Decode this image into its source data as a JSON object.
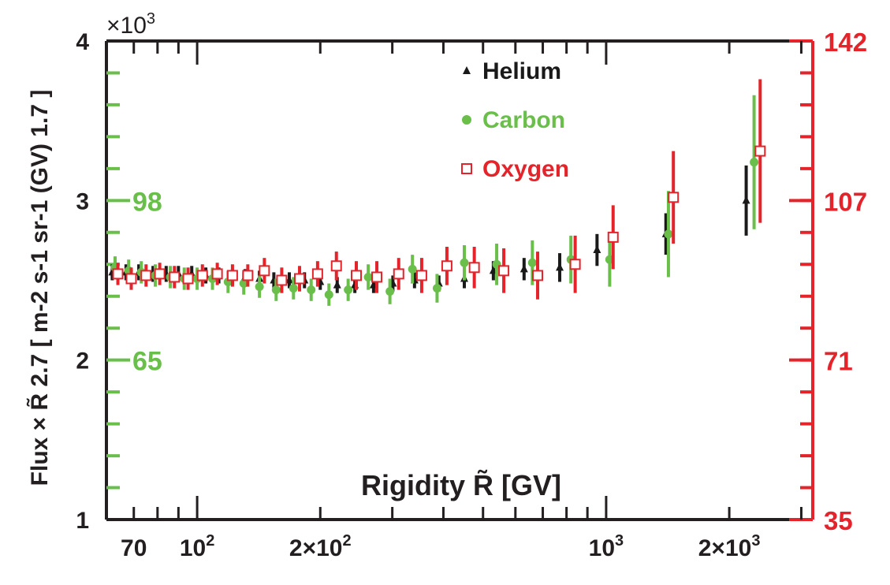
{
  "chart_data": {
    "type": "scatter",
    "xlabel": "Rigidity R̃ [GV]",
    "ylabel": "Flux × R̃ 2.7 [ m-2 s-1 sr-1 (GV) 1.7 ]",
    "y_multiplier": "×10",
    "y_multiplier_exp": "3",
    "x_scale": "log",
    "xlim": [
      60,
      3200
    ],
    "ylim": [
      1,
      4
    ],
    "grid": false,
    "legend_position": "top-center",
    "x_ticks": [
      {
        "value": 70,
        "label": "70"
      },
      {
        "value": 100,
        "label": "10",
        "exp": "2"
      },
      {
        "value": 200,
        "label": "2×10",
        "exp": "2"
      },
      {
        "value": 1000,
        "label": "10",
        "exp": "3"
      },
      {
        "value": 2000,
        "label": "2×10",
        "exp": "3"
      }
    ],
    "y_ticks": [
      {
        "value": 1,
        "label": "1"
      },
      {
        "value": 2,
        "label": "2"
      },
      {
        "value": 3,
        "label": "3"
      },
      {
        "value": 4,
        "label": "4"
      }
    ],
    "carbon_axis": {
      "color": "#6abf4b",
      "labels": [
        {
          "value": 3,
          "label": "98"
        },
        {
          "value": 2,
          "label": "65"
        }
      ]
    },
    "oxygen_axis": {
      "color": "#e4232b",
      "labels": [
        {
          "value": 4,
          "label": "142"
        },
        {
          "value": 3,
          "label": "107"
        },
        {
          "value": 2,
          "label": "71"
        },
        {
          "value": 1,
          "label": "35"
        }
      ]
    },
    "series": [
      {
        "name": "Helium",
        "color": "#1a1a1a",
        "marker": "triangle",
        "x": [
          62,
          67,
          72,
          78,
          84,
          90,
          97,
          105,
          113,
          122,
          131,
          142,
          154,
          168,
          183,
          200,
          220,
          243,
          270,
          301,
          340,
          390,
          450,
          530,
          630,
          770,
          950,
          1400,
          2200
        ],
        "y": [
          2.55,
          2.55,
          2.55,
          2.54,
          2.54,
          2.54,
          2.54,
          2.53,
          2.53,
          2.52,
          2.52,
          2.51,
          2.5,
          2.5,
          2.5,
          2.49,
          2.47,
          2.47,
          2.47,
          2.48,
          2.5,
          2.48,
          2.51,
          2.56,
          2.57,
          2.58,
          2.69,
          2.79,
          3.0
        ],
        "err": [
          0.05,
          0.05,
          0.05,
          0.05,
          0.05,
          0.05,
          0.05,
          0.05,
          0.05,
          0.05,
          0.05,
          0.05,
          0.05,
          0.05,
          0.05,
          0.05,
          0.05,
          0.05,
          0.05,
          0.05,
          0.05,
          0.05,
          0.06,
          0.06,
          0.07,
          0.09,
          0.1,
          0.13,
          0.22
        ]
      },
      {
        "name": "Carbon",
        "color": "#6abf4b",
        "marker": "circle",
        "x": [
          63,
          68,
          73,
          79,
          86,
          93,
          100,
          109,
          119,
          130,
          142,
          156,
          172,
          190,
          210,
          234,
          262,
          296,
          336,
          386,
          450,
          540,
          660,
          820,
          1020,
          1420,
          2300
        ],
        "y": [
          2.58,
          2.56,
          2.55,
          2.53,
          2.52,
          2.51,
          2.51,
          2.51,
          2.49,
          2.48,
          2.46,
          2.44,
          2.45,
          2.44,
          2.41,
          2.44,
          2.52,
          2.43,
          2.57,
          2.45,
          2.61,
          2.6,
          2.61,
          2.63,
          2.63,
          2.79,
          3.24
        ],
        "err": [
          0.07,
          0.07,
          0.07,
          0.07,
          0.07,
          0.07,
          0.07,
          0.07,
          0.07,
          0.07,
          0.07,
          0.07,
          0.07,
          0.07,
          0.07,
          0.07,
          0.08,
          0.08,
          0.09,
          0.09,
          0.11,
          0.13,
          0.14,
          0.15,
          0.17,
          0.27,
          0.42
        ]
      },
      {
        "name": "Oxygen",
        "color": "#e4232b",
        "marker": "square",
        "x": [
          64,
          69,
          75,
          81,
          88,
          95,
          103,
          112,
          122,
          133,
          146,
          161,
          178,
          197,
          219,
          245,
          275,
          311,
          354,
          408,
          476,
          562,
          680,
          840,
          1040,
          1460,
          2380
        ],
        "y": [
          2.54,
          2.51,
          2.53,
          2.54,
          2.52,
          2.51,
          2.53,
          2.54,
          2.53,
          2.53,
          2.56,
          2.5,
          2.51,
          2.54,
          2.59,
          2.53,
          2.52,
          2.54,
          2.53,
          2.59,
          2.58,
          2.56,
          2.53,
          2.6,
          2.77,
          3.02,
          3.31
        ],
        "err": [
          0.07,
          0.07,
          0.07,
          0.07,
          0.07,
          0.07,
          0.07,
          0.07,
          0.07,
          0.07,
          0.08,
          0.08,
          0.08,
          0.08,
          0.09,
          0.09,
          0.1,
          0.1,
          0.11,
          0.12,
          0.13,
          0.14,
          0.15,
          0.18,
          0.2,
          0.29,
          0.45
        ]
      }
    ]
  }
}
